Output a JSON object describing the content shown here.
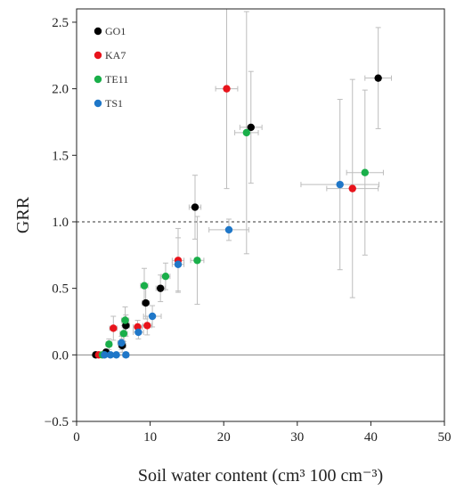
{
  "chart_data": {
    "type": "scatter",
    "xlabel": "Soil water content  (cm³ 100 cm⁻³)",
    "ylabel": "GRR",
    "xlim": [
      0,
      50
    ],
    "ylim": [
      -0.5,
      2.6
    ],
    "xticks": [
      "0",
      "10",
      "20",
      "30",
      "40",
      "50"
    ],
    "yticks": [
      "−0.5",
      "0.0",
      "0.5",
      "1.0",
      "1.5",
      "2.0",
      "2.5"
    ],
    "legend_position": "top-left",
    "reference_lines": [
      {
        "y": 1.0,
        "style": "dashed"
      },
      {
        "y": 0.0,
        "style": "solid"
      }
    ],
    "error_bar_color": "#bdbdbd",
    "series": [
      {
        "name": "GO1",
        "color": "#000000",
        "points": [
          {
            "x": 2.6,
            "y": 0.0,
            "xerr": 0.3,
            "yerr": 0.0
          },
          {
            "x": 4.0,
            "y": 0.02,
            "xerr": 0.3,
            "yerr": 0.02
          },
          {
            "x": 6.2,
            "y": 0.07,
            "xerr": 0.5,
            "yerr": 0.05
          },
          {
            "x": 6.7,
            "y": 0.22,
            "xerr": 0.5,
            "yerr": 0.08
          },
          {
            "x": 9.4,
            "y": 0.39,
            "xerr": 0.5,
            "yerr": 0.12
          },
          {
            "x": 11.4,
            "y": 0.5,
            "xerr": 0.6,
            "yerr": 0.1
          },
          {
            "x": 16.1,
            "y": 1.11,
            "xerr": 0.8,
            "yerr": 0.24
          },
          {
            "x": 23.7,
            "y": 1.71,
            "xerr": 1.5,
            "yerr": 0.42
          },
          {
            "x": 41.0,
            "y": 2.08,
            "xerr": 1.8,
            "yerr": 0.38
          }
        ]
      },
      {
        "name": "KA7",
        "color": "#e8141c",
        "points": [
          {
            "x": 3.0,
            "y": 0.0,
            "xerr": 0.3,
            "yerr": 0.0
          },
          {
            "x": 5.0,
            "y": 0.2,
            "xerr": 0.5,
            "yerr": 0.09
          },
          {
            "x": 8.3,
            "y": 0.21,
            "xerr": 0.6,
            "yerr": 0.05
          },
          {
            "x": 9.6,
            "y": 0.22,
            "xerr": 0.6,
            "yerr": 0.07
          },
          {
            "x": 13.8,
            "y": 0.71,
            "xerr": 0.8,
            "yerr": 0.24
          },
          {
            "x": 20.4,
            "y": 2.0,
            "xerr": 1.5,
            "yerr": 0.75
          },
          {
            "x": 37.5,
            "y": 1.25,
            "xerr": 3.5,
            "yerr": 0.82
          }
        ]
      },
      {
        "name": "TE11",
        "color": "#1aaf4a",
        "points": [
          {
            "x": 3.5,
            "y": 0.0,
            "xerr": 0.3,
            "yerr": 0.0
          },
          {
            "x": 4.4,
            "y": 0.08,
            "xerr": 0.4,
            "yerr": 0.04
          },
          {
            "x": 6.4,
            "y": 0.16,
            "xerr": 0.5,
            "yerr": 0.06
          },
          {
            "x": 6.6,
            "y": 0.26,
            "xerr": 0.5,
            "yerr": 0.1
          },
          {
            "x": 9.2,
            "y": 0.52,
            "xerr": 0.5,
            "yerr": 0.13
          },
          {
            "x": 12.1,
            "y": 0.59,
            "xerr": 0.6,
            "yerr": 0.1
          },
          {
            "x": 16.4,
            "y": 0.71,
            "xerr": 0.9,
            "yerr": 0.33
          },
          {
            "x": 23.1,
            "y": 1.67,
            "xerr": 1.6,
            "yerr": 0.91
          },
          {
            "x": 39.2,
            "y": 1.37,
            "xerr": 2.5,
            "yerr": 0.62
          }
        ]
      },
      {
        "name": "TS1",
        "color": "#1f77c8",
        "points": [
          {
            "x": 3.8,
            "y": 0.0,
            "xerr": 0.3,
            "yerr": 0.0
          },
          {
            "x": 4.6,
            "y": 0.0,
            "xerr": 0.3,
            "yerr": 0.0
          },
          {
            "x": 5.4,
            "y": 0.0,
            "xerr": 0.3,
            "yerr": 0.0
          },
          {
            "x": 6.7,
            "y": 0.0,
            "xerr": 0.4,
            "yerr": 0.0
          },
          {
            "x": 6.1,
            "y": 0.09,
            "xerr": 0.5,
            "yerr": 0.05
          },
          {
            "x": 8.4,
            "y": 0.17,
            "xerr": 0.7,
            "yerr": 0.05
          },
          {
            "x": 10.3,
            "y": 0.29,
            "xerr": 1.2,
            "yerr": 0.08
          },
          {
            "x": 13.8,
            "y": 0.68,
            "xerr": 0.8,
            "yerr": 0.2
          },
          {
            "x": 20.7,
            "y": 0.94,
            "xerr": 2.7,
            "yerr": 0.08
          },
          {
            "x": 35.8,
            "y": 1.28,
            "xerr": 5.3,
            "yerr": 0.64
          }
        ]
      }
    ]
  }
}
